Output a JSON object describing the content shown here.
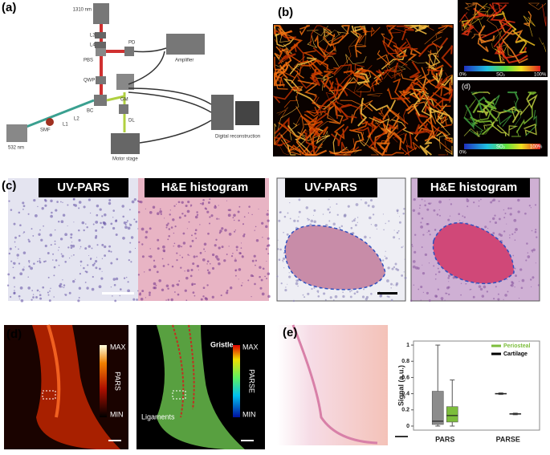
{
  "panels": [
    {
      "label": "(a)",
      "texts": [
        "1310 nm",
        "L3",
        "L4",
        "PD",
        "PBS",
        "Amplifier",
        "QWP",
        "GM",
        "BC",
        "DL",
        "SMF",
        "L1",
        "L2",
        "532 nm",
        "Motor stage",
        "Digital reconstruction"
      ]
    },
    {
      "label": "(b)",
      "texts": [
        "0%",
        "SO₂",
        "100%",
        "(d)",
        "0%",
        "SO₂",
        "100%"
      ]
    },
    {
      "label": "(c)",
      "texts": [
        "UV-PARS",
        "H&E histogram",
        "UV-PARS",
        "H&E histogram"
      ]
    },
    {
      "label": "(d)",
      "texts": [
        "MAX",
        "PARS",
        "MIN",
        "Gristle",
        "Ligaments",
        "MAX",
        "PARSE",
        "MIN"
      ]
    },
    {
      "label": "(e)"
    }
  ],
  "chart_data": {
    "type": "box",
    "ylabel": "Signal (a.u.)",
    "categories": [
      "PARS",
      "PARSE"
    ],
    "ylim": [
      -0.05,
      1.05
    ],
    "yticks": [
      0,
      0.2,
      0.4,
      0.6,
      0.8,
      1
    ],
    "legend": "upper right",
    "series": [
      {
        "name": "Periosteal",
        "color": "#7cbd3c",
        "values": [
          {
            "min": 0,
            "q1": 0.05,
            "median": 0.13,
            "q3": 0.24,
            "max": 0.57
          },
          {
            "min": 0.14,
            "q1": 0.145,
            "median": 0.15,
            "q3": 0.155,
            "max": 0.16
          }
        ]
      },
      {
        "name": "Cartilage",
        "color": "#000000",
        "box_color": "#8c8c8c",
        "values": [
          {
            "min": 0,
            "q1": 0.02,
            "median": 0.06,
            "q3": 0.43,
            "max": 1
          },
          {
            "min": 0.39,
            "q1": 0.395,
            "median": 0.4,
            "q3": 0.405,
            "max": 0.41
          }
        ]
      }
    ]
  }
}
